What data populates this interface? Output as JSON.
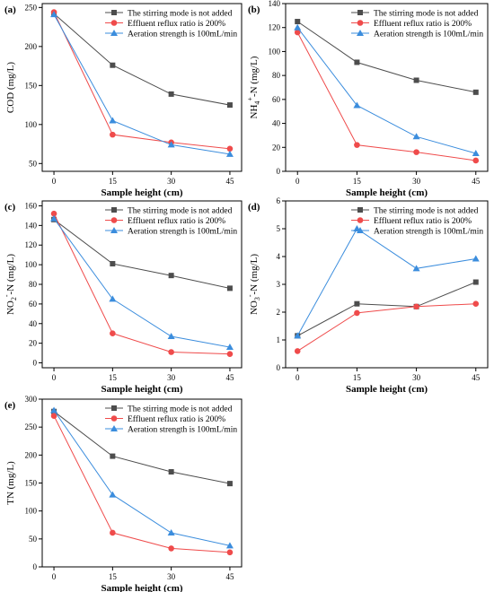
{
  "chart_data": [
    {
      "panel": "(a)",
      "type": "line",
      "xlabel": "Sample height  (cm)",
      "ylabel": "COD  (mg/L)",
      "x": [
        0,
        15,
        30,
        45
      ],
      "xlim": [
        -3,
        48
      ],
      "ylim": [
        40,
        255
      ],
      "yticks": [
        50,
        100,
        150,
        200,
        250
      ],
      "legend_position": "top-right",
      "series": [
        {
          "name": "The stirring mode is not added",
          "color": "#4d4d4d",
          "marker": "square",
          "values": [
            242,
            176,
            139,
            125
          ]
        },
        {
          "name": "Effluent reflux ratio is 200%",
          "color": "#ef4b4b",
          "marker": "circle",
          "values": [
            244,
            87,
            77,
            69
          ]
        },
        {
          "name": "Aeration strength is 100mL/min",
          "color": "#3b8ddd",
          "marker": "triangle",
          "values": [
            241,
            105,
            74,
            62
          ]
        }
      ]
    },
    {
      "panel": "(b)",
      "type": "line",
      "xlabel": "Sample height  (cm)",
      "ylabel": "NH4+-N  (mg/L)",
      "ylabel_parts": {
        "base": "NH",
        "sub": "4",
        "sup": "+",
        "rest": "-N  (mg/L)"
      },
      "x": [
        0,
        15,
        30,
        45
      ],
      "xlim": [
        -3,
        48
      ],
      "ylim": [
        0,
        140
      ],
      "yticks": [
        0,
        20,
        40,
        60,
        80,
        100,
        120,
        140
      ],
      "legend_position": "top-right",
      "series": [
        {
          "name": "The stirring mode is not added",
          "color": "#4d4d4d",
          "marker": "square",
          "values": [
            125,
            91,
            76,
            66
          ]
        },
        {
          "name": "Effluent reflux ratio is 200%",
          "color": "#ef4b4b",
          "marker": "circle",
          "values": [
            116,
            22,
            16,
            9
          ]
        },
        {
          "name": "Aeration strength is 100mL/min",
          "color": "#3b8ddd",
          "marker": "triangle",
          "values": [
            120,
            55,
            29,
            15
          ]
        }
      ]
    },
    {
      "panel": "(c)",
      "type": "line",
      "xlabel": "Sample height  (cm)",
      "ylabel": "NO2--N (mg/L)",
      "ylabel_parts": {
        "base": "NO",
        "sub": "2",
        "sup": "-",
        "rest": "-N (mg/L)"
      },
      "x": [
        0,
        15,
        30,
        45
      ],
      "xlim": [
        -3,
        48
      ],
      "ylim": [
        -5,
        165
      ],
      "yticks": [
        0,
        20,
        40,
        60,
        80,
        100,
        120,
        140,
        160
      ],
      "legend_position": "top-right",
      "series": [
        {
          "name": "The stirring mode is not added",
          "color": "#4d4d4d",
          "marker": "square",
          "values": [
            146,
            101,
            89,
            76
          ]
        },
        {
          "name": "Effluent reflux ratio is 200%",
          "color": "#ef4b4b",
          "marker": "circle",
          "values": [
            152,
            30,
            11,
            9
          ]
        },
        {
          "name": "Aeration strength is 100mL/min",
          "color": "#3b8ddd",
          "marker": "triangle",
          "values": [
            147,
            65,
            27,
            16
          ]
        }
      ]
    },
    {
      "panel": "(d)",
      "type": "line",
      "xlabel": "Sample height  (cm)",
      "ylabel": "NO3--N  (mg/L)",
      "ylabel_parts": {
        "base": "NO",
        "sub": "3",
        "sup": "-",
        "rest": "-N  (mg/L)"
      },
      "x": [
        0,
        15,
        30,
        45
      ],
      "xlim": [
        -3,
        48
      ],
      "ylim": [
        0,
        6
      ],
      "yticks": [
        0,
        1,
        2,
        3,
        4,
        5,
        6
      ],
      "legend_position": "top-right",
      "series": [
        {
          "name": "The stirring mode is not added",
          "color": "#4d4d4d",
          "marker": "square",
          "values": [
            1.15,
            2.3,
            2.2,
            3.08
          ]
        },
        {
          "name": "Effluent reflux ratio is 200%",
          "color": "#ef4b4b",
          "marker": "circle",
          "values": [
            0.6,
            1.97,
            2.2,
            2.3
          ]
        },
        {
          "name": "Aeration strength is 100mL/min",
          "color": "#3b8ddd",
          "marker": "triangle",
          "values": [
            1.15,
            5.0,
            3.57,
            3.92
          ]
        }
      ]
    },
    {
      "panel": "(e)",
      "type": "line",
      "xlabel": "Sample height  (cm)",
      "ylabel": "TN  (mg/L)",
      "x": [
        0,
        15,
        30,
        45
      ],
      "xlim": [
        -3,
        48
      ],
      "ylim": [
        0,
        300
      ],
      "yticks": [
        0,
        50,
        100,
        150,
        200,
        250,
        300
      ],
      "legend_position": "top-right",
      "series": [
        {
          "name": "The stirring mode is not added",
          "color": "#4d4d4d",
          "marker": "square",
          "values": [
            278,
            198,
            170,
            149
          ]
        },
        {
          "name": "Effluent reflux ratio is 200%",
          "color": "#ef4b4b",
          "marker": "circle",
          "values": [
            270,
            61,
            33,
            26
          ]
        },
        {
          "name": "Aeration strength is 100mL/min",
          "color": "#3b8ddd",
          "marker": "triangle",
          "values": [
            280,
            129,
            61,
            38
          ]
        }
      ]
    }
  ]
}
